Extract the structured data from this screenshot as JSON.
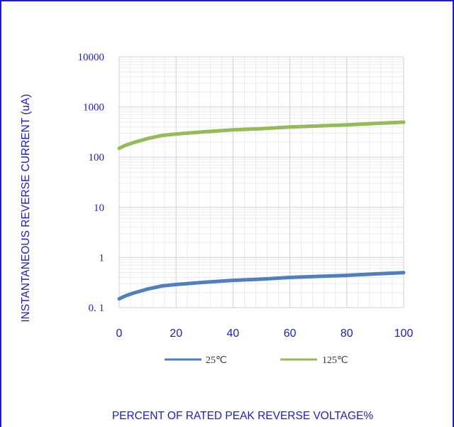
{
  "chart_data": {
    "type": "line",
    "title": "",
    "xlabel": "PERCENT OF RATED PEAK REVERSE VOLTAGE%",
    "ylabel": "INSTANTANEOUS REVERSE CURRENT (uA)",
    "x_scale": "linear",
    "y_scale": "log",
    "xlim": [
      0,
      100
    ],
    "ylim": [
      0.1,
      10000
    ],
    "x_ticks": [
      "0",
      "20",
      "40",
      "60",
      "80",
      "100"
    ],
    "y_ticks": [
      "0. 1",
      "1",
      "10",
      "100",
      "1000",
      "10000"
    ],
    "grid": true,
    "legend_position": "bottom",
    "series": [
      {
        "name": "25℃",
        "color": "#4f7fbf",
        "x": [
          0,
          2,
          5,
          10,
          15,
          20,
          30,
          40,
          50,
          60,
          70,
          80,
          90,
          100
        ],
        "y": [
          0.15,
          0.17,
          0.195,
          0.235,
          0.27,
          0.29,
          0.32,
          0.35,
          0.37,
          0.4,
          0.42,
          0.44,
          0.47,
          0.5
        ]
      },
      {
        "name": "125℃",
        "color": "#94bb54",
        "x": [
          0,
          2,
          5,
          10,
          15,
          20,
          30,
          40,
          50,
          60,
          70,
          80,
          90,
          100
        ],
        "y": [
          150,
          170,
          195,
          235,
          270,
          290,
          320,
          350,
          370,
          400,
          420,
          440,
          470,
          500
        ]
      }
    ]
  }
}
